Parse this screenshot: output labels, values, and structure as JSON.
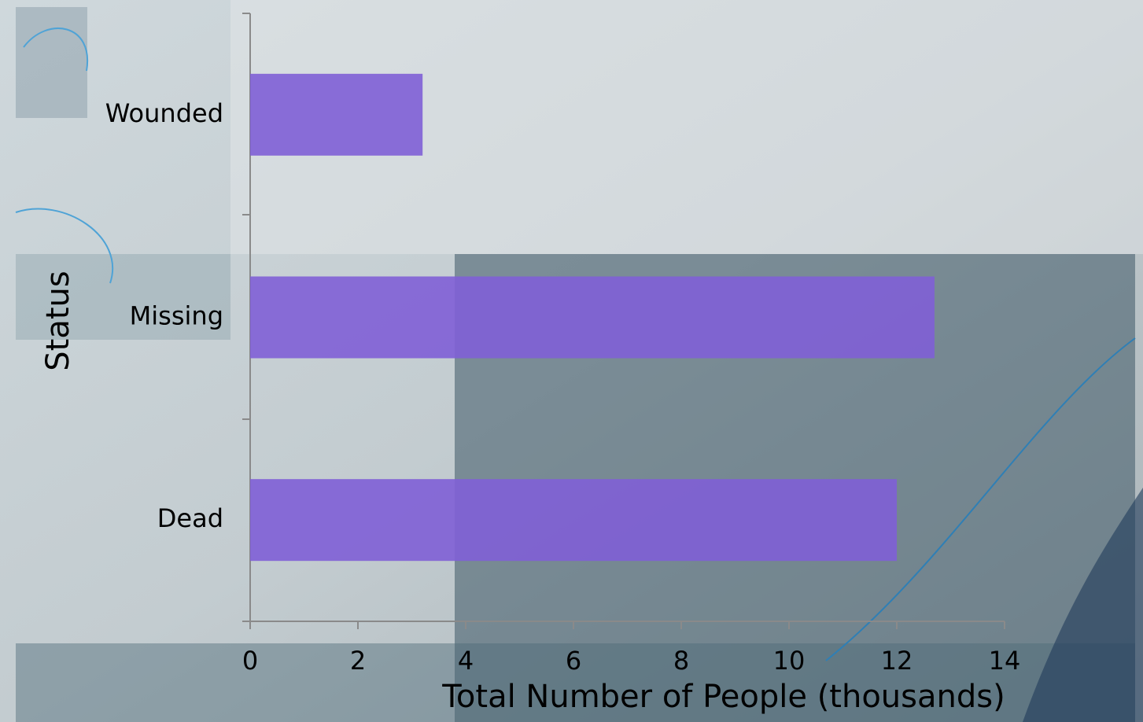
{
  "chart_data": {
    "type": "hbar",
    "categories": [
      "Wounded",
      "Missing",
      "Dead"
    ],
    "values": [
      3.2,
      12.7,
      12.0
    ],
    "color": "#7f5fd6",
    "xlim": [
      0,
      14
    ],
    "xticks": [
      0,
      2,
      4,
      6,
      8,
      10,
      12,
      14
    ],
    "xlabel": "Total Number of People (thousands)",
    "ylabel": "Status"
  }
}
